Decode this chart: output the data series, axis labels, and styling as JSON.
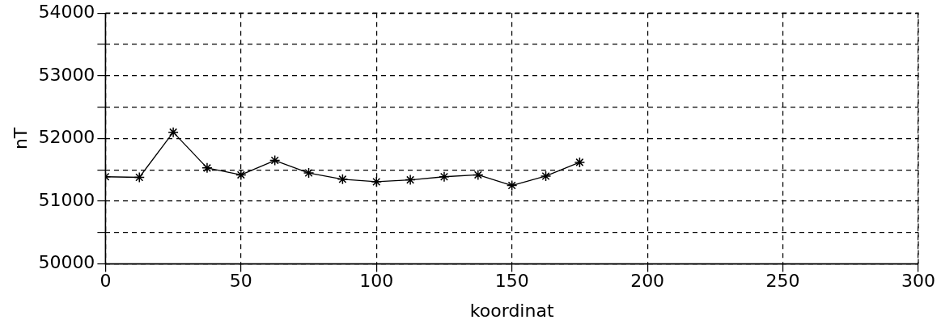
{
  "chart_data": {
    "type": "line",
    "xlabel": "koordinat",
    "ylabel": "nT",
    "x": [
      0,
      12.5,
      25,
      37.5,
      50,
      62.5,
      75,
      87.5,
      100,
      112.5,
      125,
      137.5,
      150,
      162.5,
      175
    ],
    "series": [
      {
        "color": "#000000",
        "values": [
          51390,
          51380,
          52100,
          51530,
          51420,
          51650,
          51450,
          51350,
          51310,
          51340,
          51390,
          51420,
          51250,
          51400,
          51620
        ]
      }
    ],
    "xlim": [
      0,
      300
    ],
    "xticks": [
      0,
      50,
      100,
      150,
      200,
      250,
      300
    ],
    "ylim": [
      50000,
      54000
    ],
    "yticks": [
      50000,
      {
        "value": 50500,
        "label": null
      },
      51000,
      {
        "value": 51500,
        "label": null
      },
      52000,
      {
        "value": 52500,
        "label": null
      },
      53000,
      {
        "value": 53500,
        "label": null
      },
      54000
    ],
    "grid": true,
    "legend": false,
    "marker": "cross",
    "line_style": "solid"
  }
}
